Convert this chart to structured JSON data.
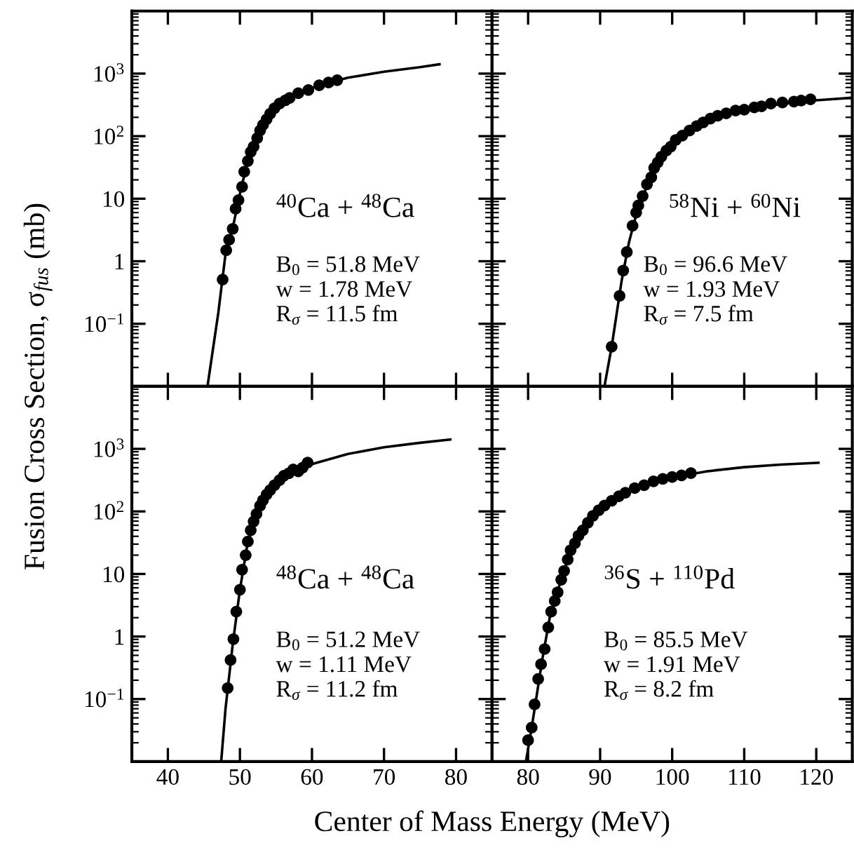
{
  "chart_data": [
    {
      "type": "scatter",
      "ylabel": "Fusion Cross Section, σ$_{fus}$ (mb)",
      "log": "y",
      "xlim": [
        35,
        85
      ],
      "ylim": [
        0.01,
        10000
      ],
      "xticks": [
        40,
        50,
        60,
        70,
        80
      ],
      "yticks": [
        {
          "value": 0.1,
          "label": "10$^{−1}$"
        },
        {
          "value": 1,
          "label": "1"
        },
        {
          "value": 10,
          "label": "10"
        },
        {
          "value": 100,
          "label": "10$^{2}$"
        },
        {
          "value": 1000,
          "label": "10$^{3}$"
        }
      ],
      "tick_labels": "y",
      "grid": false,
      "annotations": [
        "$^{40}$Ca + $^{48}$Ca",
        "B$_{0}$ = 51.8 MeV",
        "w = 1.78 MeV",
        "R$_{σ}$ = 11.5 fm"
      ],
      "series": [
        {
          "type": "scatter",
          "color": "#000000",
          "marker": "circle",
          "x": [
            47.6,
            48.1,
            48.5,
            49.0,
            49.4,
            49.8,
            50.3,
            50.6,
            51.1,
            51.5,
            51.9,
            52.4,
            52.8,
            53.2,
            53.7,
            54.2,
            54.8,
            55.5,
            56.3,
            56.9,
            58.1,
            59.5,
            61.0,
            62.3,
            63.5
          ],
          "values": [
            0.51,
            1.5,
            2.2,
            3.3,
            6.9,
            9.5,
            15.5,
            27,
            40,
            56,
            68,
            93,
            123,
            151,
            186,
            228,
            280,
            332,
            374,
            408,
            486,
            547,
            650,
            720,
            785
          ]
        },
        {
          "type": "line",
          "color": "#000000",
          "marker": "none",
          "line_style": "solid",
          "x": [
            45.5,
            47,
            48,
            49,
            50,
            51,
            52,
            53,
            54,
            55,
            56,
            58,
            60,
            62,
            65,
            70,
            75,
            77.7
          ],
          "values": [
            0.01,
            0.15,
            1.3,
            3.4,
            12,
            37,
            80,
            140,
            215,
            295,
            360,
            480,
            590,
            700,
            860,
            1070,
            1270,
            1410
          ]
        }
      ]
    },
    {
      "type": "scatter",
      "log": "y",
      "xlim": [
        75,
        125
      ],
      "ylim": [
        0.01,
        10000
      ],
      "xticks": [
        80,
        90,
        100,
        110,
        120
      ],
      "yticks": [
        0.1,
        1,
        10,
        100,
        1000
      ],
      "tick_labels": false,
      "grid": false,
      "annotations": [
        "$^{58}$Ni + $^{60}$Ni",
        "B$_{0}$ = 96.6 MeV",
        "w = 1.93 MeV",
        "R$_{σ}$ = 7.5 fm"
      ],
      "series": [
        {
          "type": "scatter",
          "color": "#000000",
          "marker": "circle",
          "x": [
            91.6,
            92.7,
            93.2,
            93.7,
            94.5,
            95.0,
            95.3,
            95.9,
            96.5,
            97.1,
            97.5,
            98.0,
            98.5,
            99.2,
            99.8,
            100.5,
            101.4,
            102.4,
            103.4,
            104.3,
            105.3,
            106.3,
            107.5,
            108.8,
            110.0,
            111.4,
            112.4,
            113.7,
            115.3,
            116.9,
            117.9,
            119.2
          ],
          "values": [
            0.043,
            0.28,
            0.71,
            1.4,
            3.7,
            6.0,
            7.8,
            11,
            17,
            22,
            31,
            38,
            47,
            59,
            68,
            87,
            102,
            123,
            145,
            166,
            191,
            212,
            231,
            257,
            265,
            288,
            300,
            332,
            345,
            357,
            370,
            388
          ]
        },
        {
          "type": "line",
          "color": "#000000",
          "marker": "none",
          "line_style": "solid",
          "x": [
            90.6,
            91.6,
            93,
            94,
            95,
            96,
            97,
            98,
            99,
            100,
            102,
            104,
            106,
            108,
            110,
            115,
            120,
            124.8
          ],
          "values": [
            0.01,
            0.043,
            0.5,
            2,
            5.5,
            11.5,
            21,
            36,
            55,
            75,
            115,
            160,
            200,
            235,
            265,
            325,
            375,
            410
          ]
        }
      ]
    },
    {
      "type": "scatter",
      "xlabel": "Center of Mass Energy (MeV)",
      "log": "y",
      "xlim": [
        35,
        85
      ],
      "ylim": [
        0.01,
        10000
      ],
      "xticks": [
        40,
        50,
        60,
        70,
        80
      ],
      "yticks": [
        {
          "value": 0.1,
          "label": "10$^{−1}$"
        },
        {
          "value": 1,
          "label": "1"
        },
        {
          "value": 10,
          "label": "10"
        },
        {
          "value": 100,
          "label": "10$^{2}$"
        },
        {
          "value": 1000,
          "label": "10$^{3}$"
        }
      ],
      "grid": false,
      "annotations": [
        "$^{48}$Ca + $^{48}$Ca",
        "B$_{0}$ = 51.2 MeV",
        "w = 1.11 MeV",
        "R$_{σ}$ = 11.2 fm"
      ],
      "series": [
        {
          "type": "scatter",
          "color": "#000000",
          "marker": "circle",
          "x": [
            48.3,
            48.7,
            49.1,
            49.5,
            50.0,
            50.3,
            50.8,
            51.1,
            51.5,
            51.9,
            52.3,
            52.8,
            53.2,
            53.7,
            54.2,
            54.8,
            55.5,
            56.1,
            56.8,
            57.4,
            58.1,
            58.7,
            59.4
          ],
          "values": [
            0.15,
            0.42,
            0.91,
            2.5,
            5.6,
            11.7,
            20,
            33,
            50,
            69,
            91,
            123,
            151,
            186,
            219,
            263,
            316,
            372,
            408,
            468,
            437,
            501,
            603
          ]
        },
        {
          "type": "line",
          "color": "#000000",
          "marker": "none",
          "line_style": "solid",
          "x": [
            47.4,
            48,
            49,
            50,
            51,
            52,
            53,
            54,
            55,
            56,
            58,
            60,
            65,
            70,
            75,
            79.2
          ],
          "values": [
            0.01,
            0.07,
            0.75,
            5.6,
            28,
            75,
            135,
            205,
            275,
            345,
            460,
            570,
            830,
            1060,
            1250,
            1410
          ]
        }
      ]
    },
    {
      "type": "scatter",
      "log": "y",
      "xlim": [
        75,
        125
      ],
      "ylim": [
        0.01,
        10000
      ],
      "xticks": [
        80,
        90,
        100,
        110,
        120
      ],
      "yticks": [
        0.1,
        1,
        10,
        100,
        1000
      ],
      "tick_labels": "x",
      "grid": false,
      "annotations": [
        "$^{36}$S + $^{110}$Pd",
        "B$_{0}$ = 85.5 MeV",
        "w = 1.91 MeV",
        "R$_{σ}$ = 8.2 fm"
      ],
      "series": [
        {
          "type": "scatter",
          "color": "#000000",
          "marker": "circle",
          "x": [
            80.0,
            80.5,
            80.9,
            81.4,
            81.8,
            82.3,
            82.8,
            83.2,
            83.7,
            84.1,
            84.6,
            85.0,
            85.5,
            85.9,
            86.5,
            87.0,
            87.6,
            88.3,
            89.0,
            89.8,
            90.6,
            91.6,
            92.6,
            93.5,
            94.8,
            96.1,
            97.4,
            98.7,
            100.0,
            101.3,
            102.6
          ],
          "values": [
            0.022,
            0.035,
            0.082,
            0.21,
            0.36,
            0.63,
            1.4,
            2.5,
            3.7,
            5.1,
            8.1,
            11.2,
            17,
            24,
            31,
            41,
            50,
            66,
            85,
            104,
            124,
            148,
            175,
            199,
            236,
            262,
            302,
            332,
            355,
            377,
            410
          ]
        },
        {
          "type": "line",
          "color": "#000000",
          "marker": "none",
          "line_style": "solid",
          "x": [
            79.7,
            80.5,
            82,
            83,
            84,
            85,
            86,
            87,
            88,
            90,
            92,
            95,
            100,
            105,
            110,
            115,
            120.3
          ],
          "values": [
            0.01,
            0.035,
            0.45,
            2,
            5,
            11,
            25,
            41,
            60,
            110,
            160,
            235,
            350,
            440,
            510,
            560,
            600
          ]
        }
      ]
    }
  ]
}
